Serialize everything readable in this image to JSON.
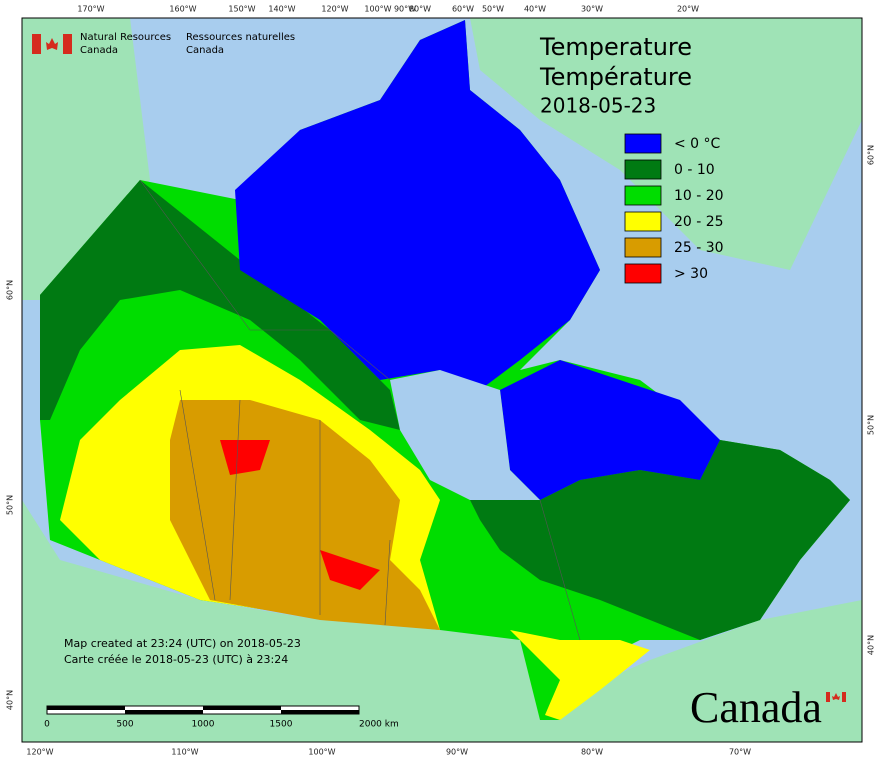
{
  "header": {
    "department_en": [
      "Natural Resources",
      "Canada"
    ],
    "department_fr": [
      "Ressources naturelles",
      "Canada"
    ]
  },
  "title": {
    "line1": "Temperature",
    "line2": "Température",
    "date": "2018-05-23"
  },
  "legend": {
    "items": [
      {
        "label": "< 0 °C",
        "color": "#0000ff"
      },
      {
        "label": "0 - 10",
        "color": "#007a12"
      },
      {
        "label": "10 - 20",
        "color": "#00dd00"
      },
      {
        "label": "20 - 25",
        "color": "#ffff00"
      },
      {
        "label": "25 - 30",
        "color": "#d89c00"
      },
      {
        "label": "> 30",
        "color": "#ff0000"
      }
    ]
  },
  "graticule": {
    "top": [
      "170°W",
      "160°W",
      "150°W",
      "140°W",
      "120°W",
      "100°W",
      "90°W",
      "80°W",
      "60°W",
      "50°W",
      "40°W",
      "30°W",
      "20°W"
    ],
    "bottom": [
      "120°W",
      "110°W",
      "100°W",
      "90°W",
      "80°W",
      "70°W"
    ],
    "left": [
      "60°N",
      "50°N",
      "40°N"
    ],
    "right": [
      "60°N",
      "50°N",
      "40°N"
    ]
  },
  "notes": [
    "Map created at 23:24 (UTC) on 2018-05-23",
    "Carte créée le 2018-05-23 (UTC) à 23:24"
  ],
  "scale_bar": {
    "labels": [
      "0",
      "500",
      "1000",
      "1500",
      "2000 km"
    ]
  },
  "wordmark": "Canada"
}
